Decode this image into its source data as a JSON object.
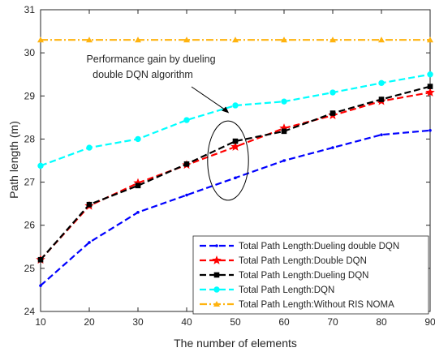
{
  "chart_data": {
    "type": "line",
    "xlabel": "The number of elements",
    "ylabel": "Path length (m)",
    "xlim": [
      10,
      90
    ],
    "ylim": [
      24,
      31
    ],
    "x_ticks": [
      "10",
      "20",
      "30",
      "40",
      "50",
      "60",
      "70",
      "80",
      "90"
    ],
    "y_ticks": [
      "24",
      "25",
      "26",
      "27",
      "28",
      "29",
      "30",
      "31"
    ],
    "grid": false,
    "legend_position": "bottom-right",
    "x": [
      10,
      20,
      30,
      40,
      50,
      60,
      70,
      80,
      90
    ],
    "series": [
      {
        "name": "Total Path Length:Dueling double DQN",
        "color": "#0000ff",
        "marker": "dot",
        "values": [
          24.6,
          25.6,
          26.3,
          26.7,
          27.1,
          27.5,
          27.8,
          28.1,
          28.2
        ]
      },
      {
        "name": "Total Path Length:Double DQN",
        "color": "#ff0000",
        "marker": "star",
        "values": [
          25.2,
          26.45,
          26.98,
          27.4,
          27.82,
          28.25,
          28.55,
          28.88,
          29.08
        ]
      },
      {
        "name": "Total Path Length:Dueling DQN",
        "color": "#000000",
        "marker": "square",
        "values": [
          25.2,
          26.48,
          26.92,
          27.42,
          27.95,
          28.18,
          28.6,
          28.92,
          29.22
        ]
      },
      {
        "name": "Total Path Length:DQN",
        "color": "#00ffff",
        "marker": "circle",
        "values": [
          27.38,
          27.8,
          28.0,
          28.44,
          28.78,
          28.87,
          29.08,
          29.3,
          29.5
        ]
      },
      {
        "name": "Total Path Length:Without RIS NOMA",
        "color": "#ffb30f",
        "marker": "triangle",
        "values": [
          30.3,
          30.3,
          30.3,
          30.3,
          30.3,
          30.3,
          30.3,
          30.3,
          30.3
        ]
      }
    ],
    "annotation": {
      "lines": [
        "Performance gain by dueling",
        "double DQN algorithm"
      ],
      "ellipse_center": [
        48.5,
        27.5
      ],
      "ellipse_radius": [
        4.2,
        0.92
      ],
      "arrow_target": [
        48.7,
        28.6
      ]
    }
  }
}
